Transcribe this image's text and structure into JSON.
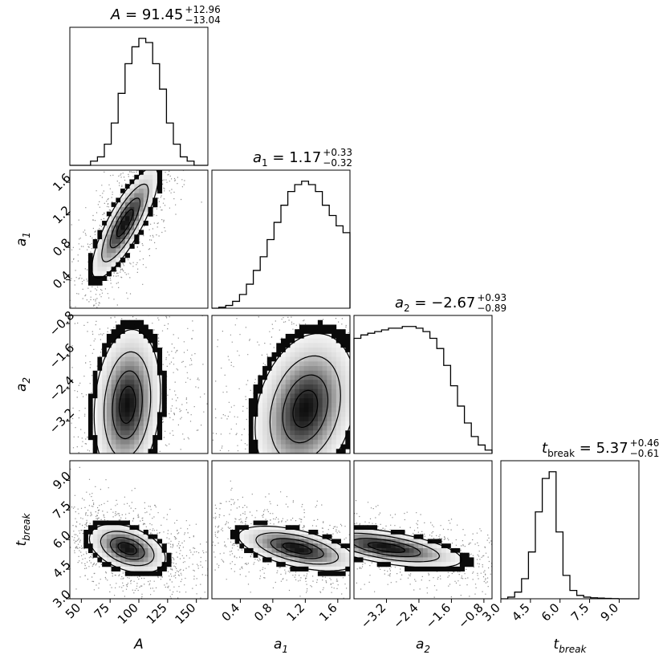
{
  "chart_data": {
    "type": "corner",
    "parameters": [
      {
        "key": "A",
        "symbol": "A",
        "sub": "",
        "median": 91.45,
        "plus": 12.96,
        "minus": 13.04,
        "title": {
          "prefix": "A = 91.45",
          "sup": "+12.96",
          "sub": "−13.04"
        },
        "range": [
          40,
          160
        ],
        "ticks": [
          50,
          75,
          100,
          125,
          150
        ],
        "tick_labels": [
          "50",
          "75",
          "100",
          "125",
          "150"
        ],
        "hist": [
          0,
          0,
          0,
          1,
          2,
          5,
          10,
          17,
          24,
          28,
          30,
          29,
          24,
          18,
          10,
          5,
          2,
          1,
          0,
          0
        ]
      },
      {
        "key": "a1",
        "symbol": "a",
        "sub": "1",
        "median": 1.17,
        "plus": 0.33,
        "minus": 0.32,
        "title": {
          "prefix": "a",
          "prefix_sub": "1",
          "rest": " = 1.17",
          "sup": "+0.33",
          "sub": "−0.32"
        },
        "range": [
          0.05,
          1.75
        ],
        "ticks": [
          0.4,
          0.8,
          1.2,
          1.6
        ],
        "tick_labels": [
          "0.4",
          "0.8",
          "1.2",
          "1.6"
        ],
        "hist": [
          0,
          0.3,
          0.8,
          2,
          4,
          7,
          11,
          15,
          20,
          25,
          30,
          34,
          36,
          37,
          36,
          34,
          30,
          27,
          24,
          22
        ]
      },
      {
        "key": "a2",
        "symbol": "a",
        "sub": "2",
        "median": -2.67,
        "plus": 0.93,
        "minus": 0.89,
        "title": {
          "prefix": "a",
          "prefix_sub": "2",
          "rest": " = −2.67",
          "sup": "+0.93",
          "sub": "−0.89"
        },
        "range": [
          -4.0,
          -0.6
        ],
        "ticks": [
          -3.2,
          -2.4,
          -1.6,
          -0.8
        ],
        "tick_labels": [
          "−3.2",
          "−2.4",
          "−1.6",
          "−0.8"
        ],
        "hist": [
          34,
          35,
          35.5,
          36,
          36.5,
          37,
          37,
          37.5,
          37.5,
          37,
          36,
          34,
          31,
          26,
          20,
          14,
          9,
          5,
          2.5,
          1
        ]
      },
      {
        "key": "tbreak",
        "symbol": "t",
        "sub": "break",
        "median": 5.37,
        "plus": 0.46,
        "minus": 0.61,
        "title": {
          "prefix": "t",
          "prefix_sub": "break",
          "rest": " = 5.37",
          "sup": "+0.46",
          "sub": "−0.61"
        },
        "range": [
          3.0,
          10.0
        ],
        "ticks": [
          3.0,
          4.5,
          6.0,
          7.5,
          9.0
        ],
        "tick_labels": [
          "3.0",
          "4.5",
          "6.0",
          "7.5",
          "9.0"
        ],
        "hist": [
          0,
          0.5,
          2,
          6,
          14,
          26,
          36,
          38,
          20,
          7,
          2.5,
          1,
          0.5,
          0.3,
          0.2,
          0.1,
          0.05,
          0,
          0,
          0
        ]
      }
    ],
    "axis_labels": {
      "A": {
        "base": "A",
        "sub": ""
      },
      "a1": {
        "base": "a",
        "sub": "1"
      },
      "a2": {
        "base": "a",
        "sub": "2"
      },
      "tbreak": {
        "base": "t",
        "sub": "break"
      }
    },
    "pairs": [
      {
        "x": "A",
        "y": "a1",
        "peak": [
          88,
          1.1
        ],
        "sx": 14,
        "sy": 0.33,
        "rho": 0.82
      },
      {
        "x": "A",
        "y": "a2",
        "peak": [
          90,
          -2.8
        ],
        "sx": 14,
        "sy": 0.9,
        "rho": 0.15
      },
      {
        "x": "a1",
        "y": "a2",
        "peak": [
          1.2,
          -2.9
        ],
        "sx": 0.3,
        "sy": 0.9,
        "rho": 0.25
      },
      {
        "x": "A",
        "y": "tbreak",
        "peak": [
          90,
          5.55
        ],
        "sx": 16,
        "sy": 0.6,
        "rho": -0.4
      },
      {
        "x": "a1",
        "y": "tbreak",
        "peak": [
          1.1,
          5.55
        ],
        "sx": 0.35,
        "sy": 0.55,
        "rho": -0.55
      },
      {
        "x": "a2",
        "y": "tbreak",
        "peak": [
          -3.2,
          5.6
        ],
        "sx": 0.9,
        "sy": 0.5,
        "rho": -0.6
      }
    ],
    "grid": false,
    "legend": "none"
  }
}
